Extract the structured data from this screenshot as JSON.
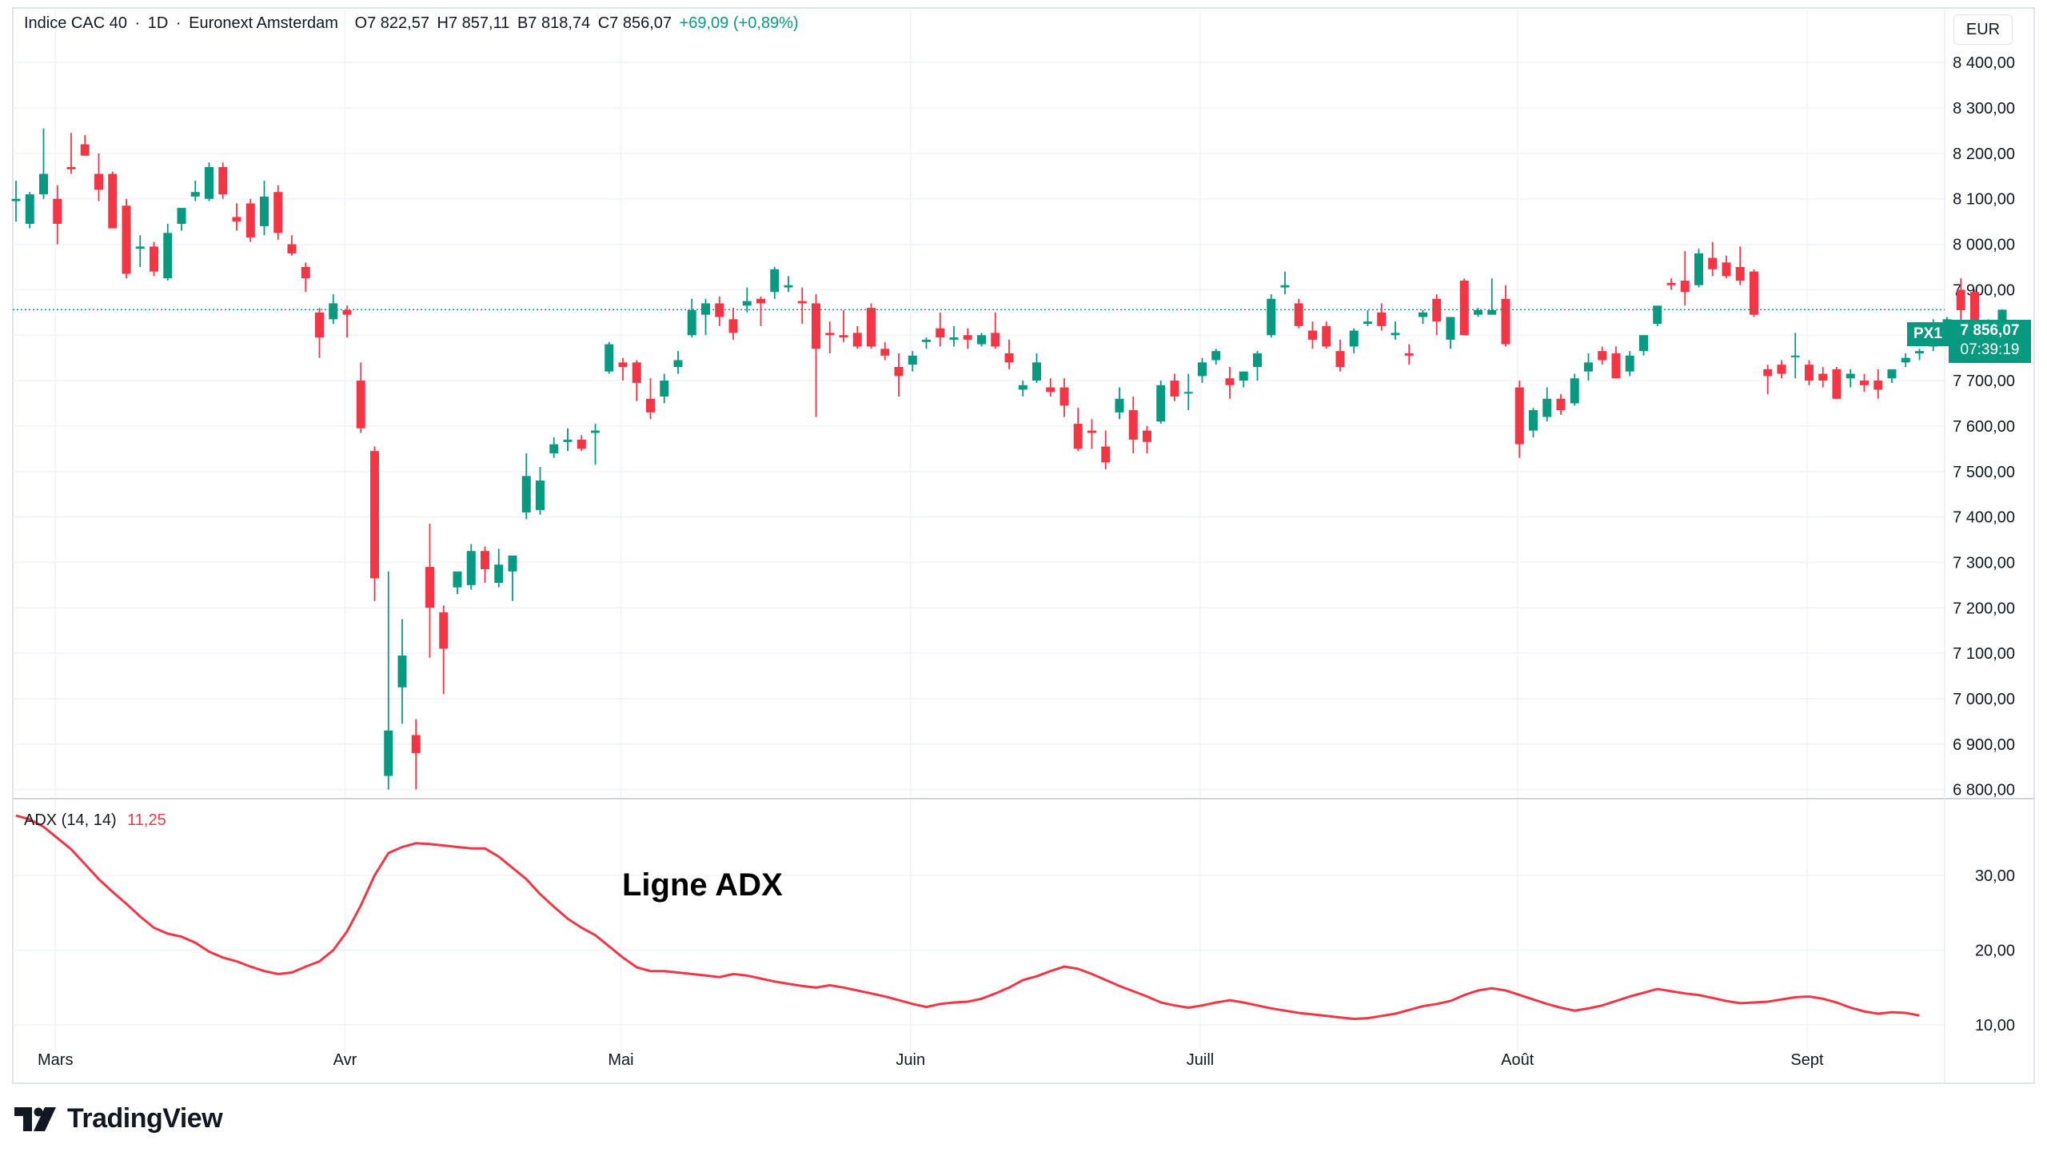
{
  "header": {
    "symbol": "Indice CAC 40",
    "interval": "1D",
    "exchange": "Euronext Amsterdam",
    "open_label": "O",
    "open": "7 822,57",
    "high_label": "H",
    "high": "7 857,11",
    "low_label": "B",
    "low": "7 818,74",
    "close_label": "C",
    "close": "7 856,07",
    "change": "+69,09 (+0,89%)",
    "separator": "·"
  },
  "currency": "EUR",
  "price_tag": {
    "label": "PX1",
    "price": "7 856,07",
    "countdown": "07:39:19"
  },
  "adx_header": {
    "label": "ADX (14, 14)",
    "value": "11,25"
  },
  "annotation": "Ligne ADX",
  "brand": "TradingView",
  "colors": {
    "up": "#089981",
    "down": "#f23645",
    "adx": "#f23645",
    "grid": "#f0f3fa",
    "text": "#131722"
  },
  "chart_data": [
    {
      "type": "candlestick",
      "title": "Indice CAC 40 · 1D · Euronext Amsterdam",
      "y_axis_ticks": [
        "8 400,00",
        "8 300,00",
        "8 200,00",
        "8 100,00",
        "8 000,00",
        "7 900,00",
        "7 800,00",
        "7 700,00",
        "7 600,00",
        "7 500,00",
        "7 400,00",
        "7 300,00",
        "7 200,00",
        "7 100,00",
        "7 000,00",
        "6 900,00",
        "6 800,00"
      ],
      "y_tick_values": [
        8400,
        8300,
        8200,
        8100,
        8000,
        7900,
        7800,
        7700,
        7600,
        7500,
        7400,
        7300,
        7200,
        7100,
        7000,
        6900,
        6800
      ],
      "ylim": [
        6780,
        8520
      ],
      "x_axis_labels": [
        {
          "label": "Mars",
          "index": 1
        },
        {
          "label": "Avr",
          "index": 22
        },
        {
          "label": "Mai",
          "index": 42
        },
        {
          "label": "Juin",
          "index": 63
        },
        {
          "label": "Juill",
          "index": 84
        },
        {
          "label": "Août",
          "index": 107
        },
        {
          "label": "Sept",
          "index": 128
        }
      ],
      "last_price": 7856.07,
      "candles": [
        [
          8095,
          8140,
          8050,
          8100
        ],
        [
          8045,
          8115,
          8035,
          8110
        ],
        [
          8110,
          8255,
          8100,
          8155
        ],
        [
          8100,
          8130,
          8000,
          8045
        ],
        [
          8170,
          8245,
          8155,
          8165
        ],
        [
          8220,
          8240,
          8195,
          8195
        ],
        [
          8155,
          8200,
          8095,
          8120
        ],
        [
          8155,
          8160,
          8040,
          8035
        ],
        [
          8085,
          8100,
          7925,
          7935
        ],
        [
          7990,
          8020,
          7950,
          7995
        ],
        [
          7995,
          8005,
          7930,
          7940
        ],
        [
          7925,
          8045,
          7920,
          8025
        ],
        [
          8045,
          8080,
          8030,
          8080
        ],
        [
          8105,
          8140,
          8095,
          8115
        ],
        [
          8100,
          8180,
          8095,
          8170
        ],
        [
          8170,
          8180,
          8100,
          8110
        ],
        [
          8060,
          8090,
          8030,
          8050
        ],
        [
          8090,
          8100,
          8005,
          8015
        ],
        [
          8040,
          8140,
          8020,
          8105
        ],
        [
          8115,
          8130,
          8010,
          8025
        ],
        [
          8000,
          8020,
          7975,
          7980
        ],
        [
          7950,
          7960,
          7895,
          7925
        ],
        [
          7850,
          7860,
          7750,
          7795
        ],
        [
          7835,
          7890,
          7825,
          7870
        ],
        [
          7855,
          7865,
          7795,
          7845
        ],
        [
          7700,
          7740,
          7585,
          7595
        ],
        [
          7545,
          7555,
          7215,
          7265
        ],
        [
          6830,
          7280,
          6800,
          6930
        ],
        [
          7025,
          7175,
          6945,
          7095
        ],
        [
          6920,
          6955,
          6800,
          6880
        ],
        [
          7290,
          7385,
          7090,
          7200
        ],
        [
          7190,
          7205,
          7010,
          7110
        ],
        [
          7245,
          7265,
          7230,
          7280
        ],
        [
          7250,
          7340,
          7240,
          7325
        ],
        [
          7325,
          7335,
          7255,
          7285
        ],
        [
          7255,
          7330,
          7245,
          7295
        ],
        [
          7280,
          7310,
          7215,
          7315
        ],
        [
          7410,
          7540,
          7395,
          7490
        ],
        [
          7415,
          7510,
          7405,
          7480
        ],
        [
          7540,
          7575,
          7530,
          7560
        ],
        [
          7565,
          7595,
          7545,
          7570
        ],
        [
          7570,
          7580,
          7545,
          7550
        ],
        [
          7585,
          7605,
          7515,
          7590
        ],
        [
          7720,
          7785,
          7715,
          7780
        ],
        [
          7740,
          7750,
          7700,
          7730
        ],
        [
          7740,
          7745,
          7655,
          7695
        ],
        [
          7660,
          7705,
          7615,
          7630
        ],
        [
          7665,
          7715,
          7650,
          7700
        ],
        [
          7730,
          7765,
          7715,
          7745
        ],
        [
          7800,
          7880,
          7795,
          7855
        ],
        [
          7845,
          7880,
          7800,
          7870
        ],
        [
          7870,
          7885,
          7820,
          7840
        ],
        [
          7835,
          7860,
          7790,
          7805
        ],
        [
          7865,
          7905,
          7850,
          7875
        ],
        [
          7880,
          7885,
          7820,
          7870
        ],
        [
          7895,
          7950,
          7880,
          7945
        ],
        [
          7905,
          7930,
          7895,
          7910
        ],
        [
          7875,
          7905,
          7825,
          7870
        ],
        [
          7870,
          7890,
          7620,
          7770
        ],
        [
          7805,
          7830,
          7760,
          7800
        ],
        [
          7800,
          7855,
          7785,
          7795
        ],
        [
          7805,
          7820,
          7770,
          7775
        ],
        [
          7860,
          7870,
          7770,
          7775
        ],
        [
          7770,
          7785,
          7745,
          7755
        ],
        [
          7730,
          7760,
          7665,
          7710
        ],
        [
          7735,
          7765,
          7720,
          7755
        ],
        [
          7785,
          7795,
          7770,
          7790
        ],
        [
          7815,
          7850,
          7775,
          7795
        ],
        [
          7790,
          7820,
          7775,
          7795
        ],
        [
          7800,
          7815,
          7770,
          7790
        ],
        [
          7780,
          7805,
          7775,
          7800
        ],
        [
          7805,
          7850,
          7770,
          7775
        ],
        [
          7760,
          7790,
          7725,
          7740
        ],
        [
          7680,
          7700,
          7665,
          7690
        ],
        [
          7700,
          7760,
          7695,
          7740
        ],
        [
          7685,
          7705,
          7665,
          7675
        ],
        [
          7685,
          7705,
          7620,
          7645
        ],
        [
          7605,
          7640,
          7545,
          7550
        ],
        [
          7590,
          7615,
          7550,
          7585
        ],
        [
          7555,
          7590,
          7505,
          7520
        ],
        [
          7630,
          7685,
          7615,
          7660
        ],
        [
          7635,
          7665,
          7540,
          7570
        ],
        [
          7590,
          7600,
          7540,
          7565
        ],
        [
          7610,
          7700,
          7605,
          7690
        ],
        [
          7700,
          7715,
          7655,
          7665
        ],
        [
          7675,
          7715,
          7635,
          7675
        ],
        [
          7710,
          7750,
          7695,
          7740
        ],
        [
          7745,
          7770,
          7735,
          7765
        ],
        [
          7705,
          7730,
          7660,
          7690
        ],
        [
          7700,
          7720,
          7685,
          7720
        ],
        [
          7730,
          7765,
          7700,
          7760
        ],
        [
          7800,
          7890,
          7795,
          7880
        ],
        [
          7905,
          7940,
          7890,
          7910
        ],
        [
          7870,
          7880,
          7815,
          7820
        ],
        [
          7810,
          7830,
          7770,
          7790
        ],
        [
          7820,
          7830,
          7770,
          7775
        ],
        [
          7765,
          7790,
          7720,
          7730
        ],
        [
          7775,
          7815,
          7760,
          7810
        ],
        [
          7825,
          7855,
          7820,
          7830
        ],
        [
          7850,
          7870,
          7810,
          7820
        ],
        [
          7800,
          7830,
          7790,
          7805
        ],
        [
          7760,
          7780,
          7735,
          7755
        ],
        [
          7840,
          7855,
          7825,
          7850
        ],
        [
          7880,
          7890,
          7800,
          7830
        ],
        [
          7790,
          7840,
          7770,
          7840
        ],
        [
          7920,
          7925,
          7800,
          7800
        ],
        [
          7845,
          7860,
          7840,
          7855
        ],
        [
          7845,
          7925,
          7845,
          7855
        ],
        [
          7880,
          7910,
          7775,
          7780
        ],
        [
          7685,
          7700,
          7530,
          7560
        ],
        [
          7590,
          7640,
          7575,
          7635
        ],
        [
          7620,
          7685,
          7610,
          7660
        ],
        [
          7660,
          7670,
          7625,
          7635
        ],
        [
          7650,
          7715,
          7645,
          7705
        ],
        [
          7720,
          7760,
          7700,
          7740
        ],
        [
          7765,
          7775,
          7735,
          7745
        ],
        [
          7760,
          7775,
          7705,
          7705
        ],
        [
          7720,
          7765,
          7710,
          7755
        ],
        [
          7765,
          7800,
          7755,
          7800
        ],
        [
          7825,
          7865,
          7820,
          7865
        ],
        [
          7915,
          7925,
          7900,
          7910
        ],
        [
          7920,
          7985,
          7865,
          7895
        ],
        [
          7910,
          7990,
          7905,
          7980
        ],
        [
          7970,
          8005,
          7930,
          7945
        ],
        [
          7960,
          7975,
          7925,
          7930
        ],
        [
          7950,
          7995,
          7910,
          7920
        ],
        [
          7940,
          7945,
          7840,
          7845
        ],
        [
          7725,
          7735,
          7670,
          7710
        ],
        [
          7735,
          7745,
          7705,
          7715
        ],
        [
          7755,
          7805,
          7705,
          7755
        ],
        [
          7735,
          7745,
          7690,
          7700
        ],
        [
          7715,
          7730,
          7685,
          7700
        ],
        [
          7725,
          7730,
          7660,
          7660
        ],
        [
          7705,
          7725,
          7685,
          7715
        ],
        [
          7700,
          7715,
          7675,
          7690
        ],
        [
          7700,
          7725,
          7660,
          7680
        ],
        [
          7705,
          7725,
          7695,
          7725
        ],
        [
          7740,
          7760,
          7730,
          7750
        ],
        [
          7760,
          7770,
          7745,
          7765
        ],
        [
          7775,
          7835,
          7765,
          7825
        ],
        [
          7825,
          7840,
          7815,
          7835
        ],
        [
          7900,
          7925,
          7830,
          7855
        ],
        [
          7895,
          7900,
          7810,
          7825
        ],
        [
          7830,
          7835,
          7790,
          7790
        ],
        [
          7822.57,
          7857.11,
          7818.74,
          7856.07
        ]
      ]
    },
    {
      "type": "line",
      "title": "ADX (14, 14)",
      "y_axis_ticks": [
        "30,00",
        "20,00",
        "10,00"
      ],
      "y_tick_values": [
        30,
        20,
        10
      ],
      "ylim": [
        10,
        40
      ],
      "series": [
        {
          "name": "ADX",
          "last_value": 11.25,
          "values": [
            38.0,
            37.5,
            36.5,
            35.0,
            33.5,
            31.5,
            29.5,
            27.8,
            26.2,
            24.5,
            23.0,
            22.2,
            21.8,
            21.0,
            19.8,
            19.0,
            18.5,
            17.8,
            17.2,
            16.8,
            17.0,
            17.8,
            18.5,
            20.0,
            22.5,
            26.0,
            30.0,
            33.0,
            33.8,
            34.3,
            34.2,
            34.0,
            33.8,
            33.6,
            33.6,
            32.5,
            31.0,
            29.5,
            27.5,
            25.8,
            24.2,
            23.0,
            22.0,
            20.5,
            19.0,
            17.7,
            17.2,
            17.2,
            17.0,
            16.8,
            16.6,
            16.4,
            16.8,
            16.6,
            16.2,
            15.8,
            15.5,
            15.2,
            15.0,
            15.3,
            15.0,
            14.6,
            14.2,
            13.8,
            13.3,
            12.8,
            12.4,
            12.8,
            13.0,
            13.1,
            13.5,
            14.2,
            15.0,
            16.0,
            16.5,
            17.2,
            17.8,
            17.5,
            16.8,
            16.0,
            15.2,
            14.5,
            13.8,
            13.0,
            12.6,
            12.3,
            12.6,
            13.0,
            13.3,
            13.0,
            12.6,
            12.2,
            11.9,
            11.6,
            11.4,
            11.2,
            11.0,
            10.8,
            10.9,
            11.2,
            11.5,
            12.0,
            12.5,
            12.8,
            13.2,
            14.0,
            14.6,
            14.9,
            14.6,
            14.0,
            13.4,
            12.8,
            12.3,
            11.9,
            12.2,
            12.6,
            13.2,
            13.8,
            14.3,
            14.8,
            14.5,
            14.2,
            14.0,
            13.6,
            13.2,
            12.9,
            13.0,
            13.1,
            13.4,
            13.7,
            13.8,
            13.5,
            13.0,
            12.3,
            11.8,
            11.5,
            11.7,
            11.6,
            11.25
          ]
        }
      ]
    }
  ]
}
